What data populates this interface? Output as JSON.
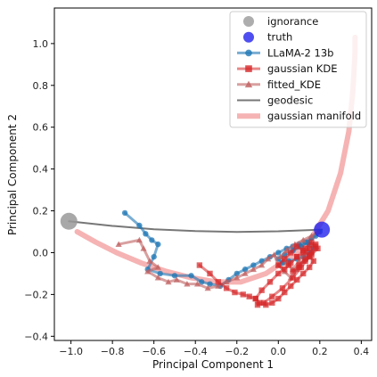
{
  "chart_data": {
    "type": "line",
    "xlabel": "Principal Component 1",
    "ylabel": "Principal Component 2",
    "xlim": [
      -1.08,
      0.45
    ],
    "ylim": [
      -0.42,
      1.17
    ],
    "xticks": [
      -1.0,
      -0.8,
      -0.6,
      -0.4,
      -0.2,
      0.0,
      0.2,
      0.4
    ],
    "xtick_labels": [
      "−1.0",
      "−0.8",
      "−0.6",
      "−0.4",
      "−0.2",
      "0.0",
      "0.2",
      "0.4"
    ],
    "yticks": [
      -0.4,
      -0.2,
      0.0,
      0.2,
      0.4,
      0.6,
      0.8,
      1.0
    ],
    "ytick_labels": [
      "−0.4",
      "−0.2",
      "0.0",
      "0.2",
      "0.4",
      "0.6",
      "0.8",
      "1.0"
    ],
    "legend_position": "top-right",
    "series": [
      {
        "name": "gaussian manifold",
        "kind": "line",
        "color": "#f4a0a0",
        "x": [
          -0.97,
          -0.88,
          -0.78,
          -0.66,
          -0.54,
          -0.42,
          -0.3,
          -0.18,
          -0.06,
          0.06,
          0.16,
          0.24,
          0.3,
          0.34,
          0.36,
          0.37,
          0.37
        ],
        "y": [
          0.1,
          0.05,
          0.0,
          -0.05,
          -0.09,
          -0.12,
          -0.14,
          -0.14,
          -0.1,
          -0.02,
          0.07,
          0.2,
          0.38,
          0.58,
          0.78,
          0.96,
          1.03
        ]
      },
      {
        "name": "geodesic",
        "kind": "line",
        "color": "#777777",
        "x": [
          -1.01,
          -0.8,
          -0.6,
          -0.4,
          -0.2,
          0.0,
          0.1,
          0.21
        ],
        "y": [
          0.15,
          0.128,
          0.112,
          0.103,
          0.099,
          0.102,
          0.106,
          0.11
        ]
      },
      {
        "name": "LLaMA-2 13b",
        "kind": "line-marker",
        "marker": "circle",
        "color": "#1f77b4",
        "x": [
          -0.74,
          -0.67,
          -0.64,
          -0.61,
          -0.58,
          -0.6,
          -0.63,
          -0.57,
          -0.5,
          -0.42,
          -0.37,
          -0.33,
          -0.28,
          -0.24,
          -0.2,
          -0.16,
          -0.12,
          -0.08,
          -0.04,
          0.0,
          0.04,
          0.07,
          0.1,
          0.13,
          0.15,
          0.17,
          0.15,
          0.12,
          0.09,
          0.05,
          0.02,
          0.0,
          0.03,
          0.07,
          0.11,
          0.14,
          0.16,
          0.18,
          0.2
        ],
        "y": [
          0.19,
          0.13,
          0.09,
          0.06,
          0.04,
          -0.02,
          -0.08,
          -0.1,
          -0.11,
          -0.11,
          -0.14,
          -0.15,
          -0.16,
          -0.13,
          -0.1,
          -0.08,
          -0.06,
          -0.04,
          -0.02,
          0.0,
          0.02,
          0.03,
          0.04,
          0.05,
          0.04,
          0.02,
          0.0,
          -0.02,
          -0.03,
          -0.04,
          -0.05,
          -0.03,
          -0.01,
          0.01,
          0.03,
          0.05,
          0.07,
          0.08,
          0.1
        ]
      },
      {
        "name": "fitted_KDE",
        "kind": "line-marker",
        "marker": "triangle",
        "color": "#c06060",
        "x": [
          -0.77,
          -0.67,
          -0.65,
          -0.62,
          -0.58,
          -0.63,
          -0.58,
          -0.53,
          -0.49,
          -0.44,
          -0.39,
          -0.34,
          -0.29,
          -0.25,
          -0.2,
          -0.16,
          -0.12,
          -0.08,
          -0.05,
          -0.02,
          0.0,
          0.03,
          0.06,
          0.09,
          0.12,
          0.15,
          0.18,
          0.16,
          0.13,
          0.1,
          0.07,
          0.04,
          0.01,
          0.04,
          0.08,
          0.12,
          0.16,
          0.19
        ],
        "y": [
          0.04,
          0.06,
          0.02,
          -0.04,
          -0.07,
          -0.09,
          -0.12,
          -0.14,
          -0.13,
          -0.15,
          -0.15,
          -0.17,
          -0.16,
          -0.14,
          -0.12,
          -0.1,
          -0.08,
          -0.06,
          -0.03,
          -0.01,
          -0.06,
          -0.09,
          -0.12,
          -0.08,
          -0.04,
          -0.02,
          0.02,
          0.04,
          0.0,
          -0.04,
          -0.08,
          -0.05,
          -0.02,
          0.01,
          0.04,
          0.06,
          0.08,
          0.1
        ]
      },
      {
        "name": "gaussian KDE",
        "kind": "line-marker",
        "marker": "square",
        "color": "#d62728",
        "x": [
          -0.38,
          -0.33,
          -0.29,
          -0.25,
          -0.21,
          -0.17,
          -0.14,
          -0.11,
          -0.09,
          -0.06,
          -0.03,
          0.0,
          0.03,
          0.06,
          0.09,
          0.12,
          0.15,
          0.17,
          0.15,
          0.12,
          0.09,
          0.06,
          0.03,
          0.0,
          0.03,
          0.06,
          0.09,
          0.12,
          0.15,
          0.18,
          0.16,
          0.13,
          0.1,
          0.07,
          0.1,
          0.13,
          0.16,
          0.19,
          0.16,
          0.13,
          0.09,
          0.05,
          0.0,
          -0.04,
          -0.08,
          -0.11,
          -0.1,
          -0.07,
          -0.03,
          0.02,
          0.07,
          0.11,
          0.15,
          0.18
        ],
        "y": [
          -0.06,
          -0.1,
          -0.14,
          -0.17,
          -0.19,
          -0.2,
          -0.21,
          -0.22,
          -0.24,
          -0.25,
          -0.24,
          -0.22,
          -0.19,
          -0.16,
          -0.13,
          -0.1,
          -0.07,
          -0.04,
          -0.01,
          0.01,
          0.03,
          0.0,
          -0.03,
          -0.06,
          -0.08,
          -0.05,
          -0.02,
          0.0,
          0.02,
          0.04,
          0.0,
          -0.03,
          -0.06,
          -0.09,
          -0.07,
          -0.04,
          -0.01,
          0.02,
          0.05,
          0.02,
          -0.02,
          -0.06,
          -0.1,
          -0.14,
          -0.18,
          -0.22,
          -0.25,
          -0.24,
          -0.21,
          -0.17,
          -0.12,
          -0.07,
          -0.02,
          0.03
        ]
      },
      {
        "name": "ignorance",
        "kind": "point",
        "marker": "circle",
        "color": "#999999",
        "x": [
          -1.01
        ],
        "y": [
          0.15
        ]
      },
      {
        "name": "truth",
        "kind": "point",
        "marker": "circle",
        "color": "#2222ee",
        "x": [
          0.21
        ],
        "y": [
          0.11
        ]
      }
    ]
  }
}
